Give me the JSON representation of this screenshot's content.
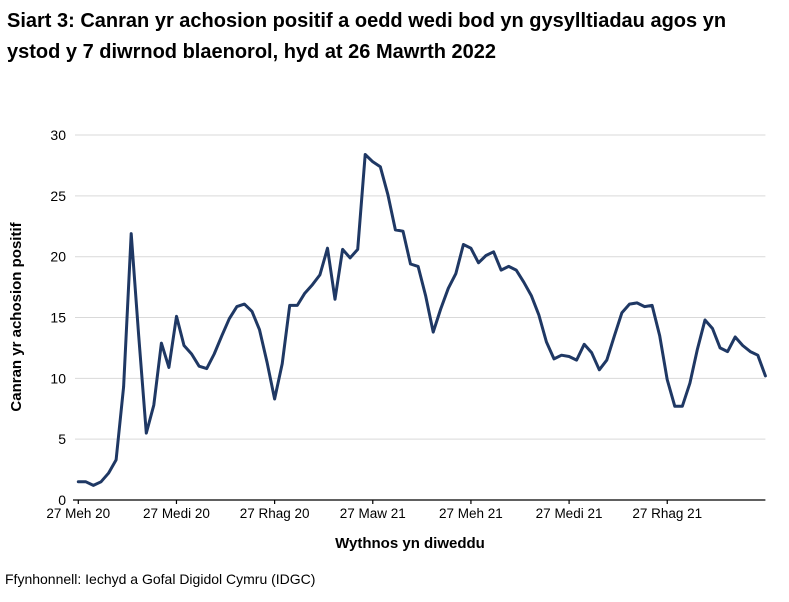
{
  "title": "Siart 3: Canran yr achosion positif a oedd wedi bod yn gysylltiadau agos yn ystod y 7 diwrnod blaenorol, hyd at 26 Mawrth 2022",
  "source": "Ffynhonnell: Iechyd a Gofal Digidol Cymru (IDGC)",
  "chart_data": {
    "type": "line",
    "title": "Siart 3: Canran yr achosion positif a oedd wedi bod yn gysylltiadau agos yn ystod y 7 diwrnod blaenorol, hyd at 26 Mawrth 2022",
    "xlabel": "Wythnos yn diweddu",
    "ylabel": "Canran yr achosion positif",
    "ylim": [
      0,
      30
    ],
    "yticks": [
      0,
      5,
      10,
      15,
      20,
      25,
      30
    ],
    "grid": true,
    "legend_position": "none",
    "series_name": "Canran yr achosion positif",
    "frequency": "weekly",
    "xtick_labels": [
      "27 Meh 20",
      "27 Medi 20",
      "27 Rhag 20",
      "27 Maw 21",
      "27 Meh 21",
      "27 Medi 21",
      "27 Rhag 21"
    ],
    "xtick_point_indices": [
      0,
      13,
      26,
      39,
      52,
      65,
      78
    ],
    "line_color": "#1f3864",
    "grid_color": "#d9d9d9",
    "axis_color": "#000000",
    "values": [
      1.5,
      1.5,
      1.2,
      1.5,
      2.2,
      3.3,
      9.3,
      21.9,
      13.5,
      5.5,
      7.8,
      12.9,
      10.9,
      15.1,
      12.7,
      12.0,
      11.0,
      10.8,
      12.0,
      13.5,
      14.9,
      15.9,
      16.1,
      15.5,
      14.0,
      11.3,
      8.3,
      11.2,
      16.0,
      16.0,
      17.0,
      17.7,
      18.5,
      20.7,
      16.5,
      20.6,
      19.9,
      20.6,
      28.4,
      27.8,
      27.4,
      25.1,
      22.2,
      22.1,
      19.4,
      19.2,
      16.8,
      13.8,
      15.7,
      17.4,
      18.6,
      21.0,
      20.7,
      19.5,
      20.1,
      20.4,
      18.9,
      19.2,
      18.9,
      17.9,
      16.8,
      15.2,
      13.0,
      11.6,
      11.9,
      11.8,
      11.5,
      12.8,
      12.1,
      10.7,
      11.5,
      13.5,
      15.4,
      16.1,
      16.2,
      15.9,
      16.0,
      13.5,
      9.9,
      7.7,
      7.7,
      9.6,
      12.4,
      14.8,
      14.1,
      12.5,
      12.2,
      13.4,
      12.7,
      12.2,
      11.9,
      10.2
    ]
  }
}
